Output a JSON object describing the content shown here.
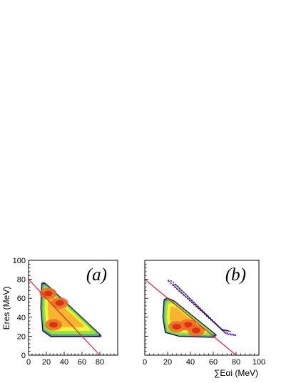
{
  "chart_data": [
    {
      "type": "heatmap",
      "panel_label": "(a)",
      "ylabel": "Eres (MeV)",
      "xlabel": "",
      "xlim": [
        0,
        100
      ],
      "ylim": [
        0,
        100
      ],
      "x_ticks": [
        "0",
        "20",
        "40",
        "60",
        "80"
      ],
      "y_ticks": [
        "0",
        "20",
        "40",
        "60",
        "80",
        "100"
      ],
      "region_outline": [
        [
          15,
          75
        ],
        [
          18,
          76
        ],
        [
          22,
          73
        ],
        [
          80,
          22
        ],
        [
          80,
          20
        ],
        [
          25,
          20
        ],
        [
          16,
          26
        ],
        [
          14,
          50
        ]
      ],
      "hot_spots": [
        [
          28,
          32
        ],
        [
          22,
          65
        ],
        [
          35,
          55
        ]
      ],
      "diagonal_line": {
        "x": [
          0,
          80
        ],
        "y": [
          80,
          0
        ],
        "color": "#e8202a"
      },
      "palette": [
        "#7a2cf0",
        "#4cc36b",
        "#9ee03c",
        "#f2f23a",
        "#f7b52e",
        "#ef6a23",
        "#d82a18"
      ]
    },
    {
      "type": "heatmap",
      "panel_label": "(b)",
      "ylabel": "",
      "xlabel": "∑Eαi (MeV)",
      "xlim": [
        0,
        100
      ],
      "ylim": [
        0,
        100
      ],
      "x_ticks": [
        "0",
        "20",
        "40",
        "60",
        "80",
        "100"
      ],
      "y_ticks": [],
      "region_outline": [
        [
          17,
          58
        ],
        [
          20,
          60
        ],
        [
          26,
          57
        ],
        [
          62,
          22
        ],
        [
          60,
          19
        ],
        [
          30,
          20
        ],
        [
          18,
          24
        ],
        [
          16,
          40
        ]
      ],
      "band_outline": [
        [
          20,
          79
        ],
        [
          24,
          78
        ],
        [
          70,
          24
        ],
        [
          80,
          21
        ],
        [
          72,
          22
        ],
        [
          28,
          70
        ]
      ],
      "hot_spots": [
        [
          38,
          32
        ],
        [
          28,
          30
        ],
        [
          45,
          26
        ]
      ],
      "diagonal_line": {
        "x": [
          0,
          80
        ],
        "y": [
          80,
          0
        ],
        "color": "#e8202a"
      },
      "palette": [
        "#7a2cf0",
        "#4cc36b",
        "#9ee03c",
        "#f2f23a",
        "#f7b52e",
        "#ef6a23",
        "#d82a18"
      ]
    }
  ]
}
